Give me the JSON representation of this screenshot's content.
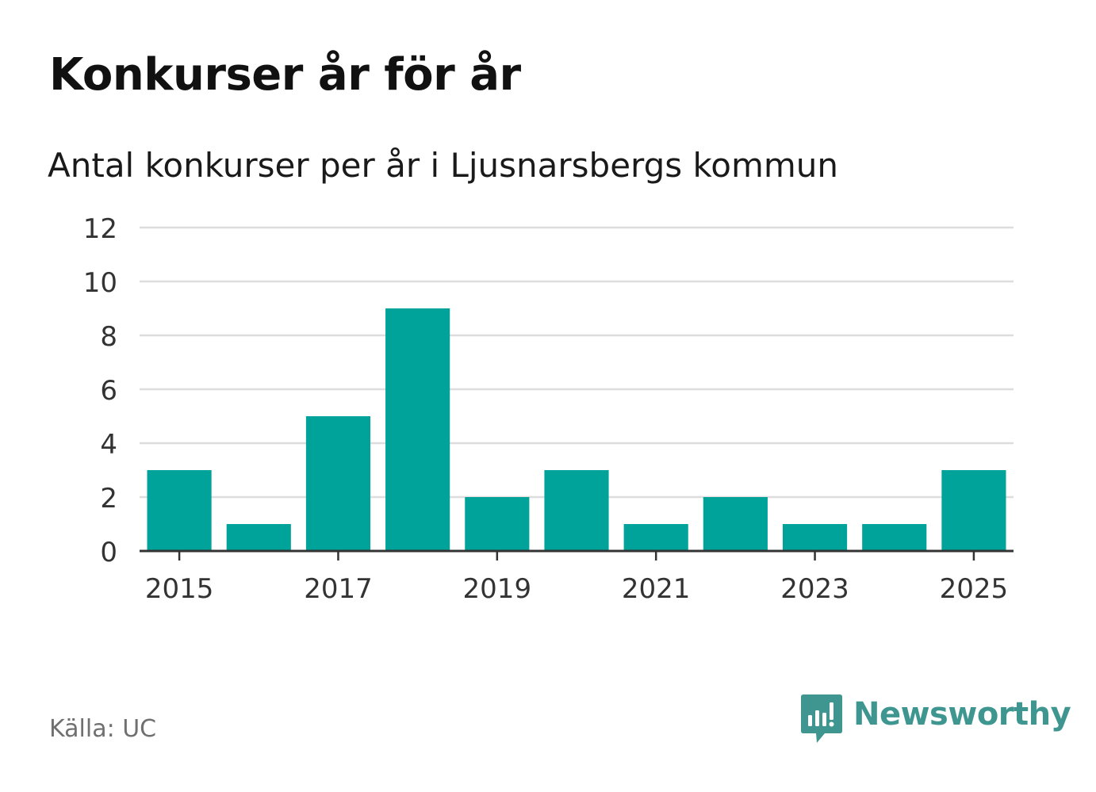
{
  "header": {
    "title": "Konkurser år för år",
    "subtitle": "Antal konkurser per år i Ljusnarsbergs kommun"
  },
  "footer": {
    "source": "Källa: UC",
    "brand": "Newsworthy"
  },
  "colors": {
    "bar": "#00a39a",
    "grid": "#dddddd",
    "axis": "#333333",
    "tick_text": "#333333",
    "brand": "#3f9690"
  },
  "chart_data": {
    "type": "bar",
    "title": "Konkurser år för år",
    "subtitle": "Antal konkurser per år i Ljusnarsbergs kommun",
    "xlabel": "",
    "ylabel": "",
    "categories": [
      2015,
      2016,
      2017,
      2018,
      2019,
      2020,
      2021,
      2022,
      2023,
      2024,
      2025
    ],
    "values": [
      3,
      1,
      5,
      9,
      2,
      3,
      1,
      2,
      1,
      1,
      3
    ],
    "ylim": [
      0,
      12
    ],
    "yticks": [
      0,
      2,
      4,
      6,
      8,
      10,
      12
    ],
    "xtick_labels": [
      "2015",
      "2017",
      "2019",
      "2021",
      "2023",
      "2025"
    ],
    "grid": true
  }
}
